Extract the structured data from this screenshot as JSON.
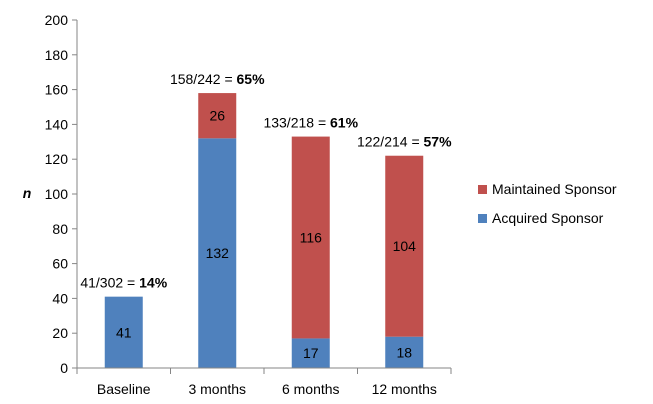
{
  "chart_data": {
    "type": "bar",
    "stacked": true,
    "categories": [
      "Baseline",
      "3 months",
      "6 months",
      "12 months"
    ],
    "series": [
      {
        "name": "Acquired Sponsor",
        "color": "#4F81BD",
        "values": [
          41,
          132,
          17,
          18
        ]
      },
      {
        "name": "Maintained Sponsor",
        "color": "#C0504D",
        "values": [
          0,
          26,
          116,
          104
        ]
      }
    ],
    "annotations": [
      {
        "fraction": "41/302 = ",
        "percent": "14%"
      },
      {
        "fraction": "158/242 = ",
        "percent": "65%"
      },
      {
        "fraction": "133/218 = ",
        "percent": "61%"
      },
      {
        "fraction": "122/214 = ",
        "percent": "57%"
      }
    ],
    "ylabel": "n",
    "ylim": [
      0,
      200
    ],
    "yticks": [
      "0",
      "20",
      "40",
      "60",
      "80",
      "100",
      "120",
      "140",
      "160",
      "180",
      "200"
    ],
    "grid": false,
    "legend": {
      "placement": "right",
      "order": [
        "Maintained Sponsor",
        "Acquired Sponsor"
      ]
    }
  }
}
